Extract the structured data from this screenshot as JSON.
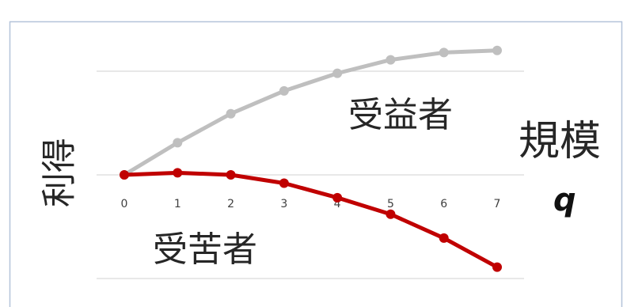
{
  "chart_data": {
    "type": "line",
    "x": [
      0,
      1,
      2,
      3,
      4,
      5,
      6,
      7
    ],
    "series": [
      {
        "name": "受益者",
        "values": [
          0,
          0.31,
          0.59,
          0.81,
          0.98,
          1.11,
          1.18,
          1.2
        ],
        "color": "#bfbfbf"
      },
      {
        "name": "受苦者",
        "values": [
          0,
          0.02,
          0,
          -0.08,
          -0.22,
          -0.38,
          -0.61,
          -0.89
        ],
        "color": "#c00000"
      }
    ],
    "xlabel": "規模",
    "xlabel_symbol": "q",
    "ylabel": "利得",
    "ylim": [
      -1,
      1.4
    ],
    "gridlines": [
      -1,
      0,
      1
    ],
    "grid": true,
    "legend": "none"
  }
}
